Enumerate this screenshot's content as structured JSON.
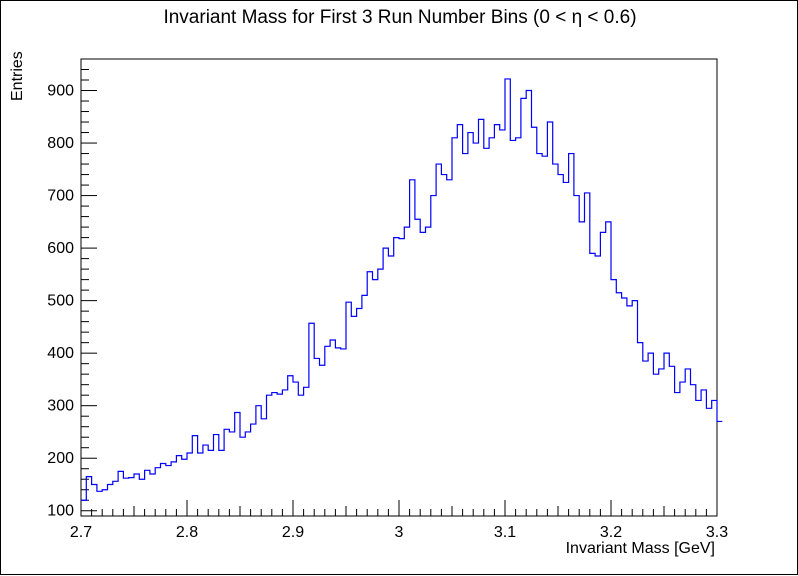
{
  "chart_data": {
    "type": "histogram",
    "title": "Invariant Mass for First 3 Run Number Bins (0 < η < 0.6)",
    "xlabel": "Invariant Mass [GeV]",
    "ylabel": "Entries",
    "xlim": [
      2.7,
      3.3
    ],
    "ylim": [
      90,
      960
    ],
    "x_ticks": [
      2.7,
      2.8,
      2.9,
      3.0,
      3.1,
      3.2,
      3.3
    ],
    "x_tick_labels": [
      "2.7",
      "2.8",
      "2.9",
      "3",
      "3.1",
      "3.2",
      "3.3"
    ],
    "y_ticks": [
      100,
      200,
      300,
      400,
      500,
      600,
      700,
      800,
      900
    ],
    "y_tick_labels": [
      "100",
      "200",
      "300",
      "400",
      "500",
      "600",
      "700",
      "800",
      "900"
    ],
    "line_color": "#0000ff",
    "grid": false,
    "series": [
      {
        "bin_width": 0.005,
        "values": [
          120,
          165,
          150,
          137,
          140,
          150,
          156,
          175,
          162,
          163,
          170,
          160,
          177,
          170,
          182,
          190,
          186,
          193,
          205,
          198,
          210,
          243,
          210,
          225,
          215,
          245,
          215,
          255,
          250,
          287,
          240,
          250,
          265,
          300,
          275,
          320,
          325,
          322,
          330,
          357,
          345,
          320,
          335,
          457,
          390,
          377,
          413,
          425,
          410,
          408,
          497,
          470,
          485,
          510,
          555,
          540,
          560,
          600,
          585,
          620,
          618,
          640,
          730,
          655,
          630,
          640,
          700,
          760,
          740,
          730,
          810,
          835,
          780,
          820,
          800,
          845,
          790,
          810,
          835,
          825,
          922,
          805,
          810,
          885,
          900,
          830,
          780,
          775,
          840,
          760,
          740,
          725,
          780,
          700,
          650,
          705,
          590,
          585,
          630,
          650,
          540,
          515,
          505,
          490,
          500,
          420,
          385,
          400,
          360,
          370,
          400,
          375,
          325,
          345,
          370,
          340,
          310,
          330,
          295,
          310,
          270
        ]
      }
    ]
  }
}
